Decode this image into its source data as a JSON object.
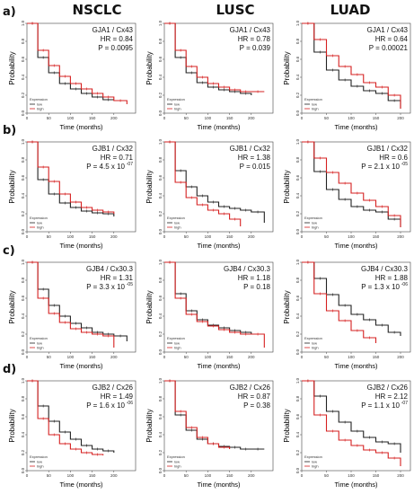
{
  "columns": [
    "NSCLC",
    "LUSC",
    "LUAD"
  ],
  "rows": [
    "a)",
    "b)",
    "c)",
    "d)"
  ],
  "axis": {
    "ylabel": "Probability",
    "xlabel": "Time (months)",
    "yticks": [
      "0.0",
      "0.2",
      "0.4",
      "0.6",
      "0.8",
      "1.0"
    ]
  },
  "legend": {
    "title": "Expression",
    "low": "low",
    "high": "high"
  },
  "colors": {
    "low": "#222222",
    "high": "#d62020",
    "censor_alt": "#8a8a1a"
  },
  "chart_data": [
    {
      "type": "line",
      "row": 0,
      "col": 0,
      "gene": "GJA1 / Cx43",
      "hr": "HR = 0.84",
      "p": "P = 0.0095",
      "xmax": 250,
      "xticks": [
        0,
        50,
        100,
        150,
        200
      ],
      "series": [
        {
          "name": "low",
          "x": [
            0,
            25,
            50,
            75,
            100,
            125,
            150,
            175,
            200
          ],
          "y": [
            1,
            0.62,
            0.45,
            0.33,
            0.27,
            0.22,
            0.18,
            0.15,
            0.15
          ]
        },
        {
          "name": "high",
          "x": [
            0,
            25,
            50,
            75,
            100,
            125,
            150,
            175,
            200,
            230
          ],
          "y": [
            1,
            0.7,
            0.53,
            0.41,
            0.33,
            0.27,
            0.22,
            0.18,
            0.14,
            0.1
          ]
        }
      ]
    },
    {
      "type": "line",
      "row": 0,
      "col": 1,
      "gene": "GJA1 / Cx43",
      "hr": "HR = 0.78",
      "p": "P = 0.039",
      "xmax": 250,
      "xticks": [
        0,
        50,
        100,
        150,
        200
      ],
      "series": [
        {
          "name": "low",
          "x": [
            0,
            25,
            50,
            75,
            100,
            125,
            150,
            175,
            200
          ],
          "y": [
            1,
            0.62,
            0.45,
            0.34,
            0.29,
            0.26,
            0.24,
            0.22,
            0.2
          ]
        },
        {
          "name": "high",
          "x": [
            0,
            25,
            50,
            75,
            100,
            125,
            150,
            175,
            200,
            230
          ],
          "y": [
            1,
            0.7,
            0.52,
            0.4,
            0.33,
            0.29,
            0.26,
            0.24,
            0.24,
            0.24
          ]
        }
      ]
    },
    {
      "type": "line",
      "row": 0,
      "col": 2,
      "gene": "GJA1 / Cx43",
      "hr": "HR = 0.64",
      "p": "P = 0.00021",
      "xmax": 220,
      "xticks": [
        0,
        50,
        100,
        150,
        200
      ],
      "series": [
        {
          "name": "low",
          "x": [
            0,
            25,
            50,
            75,
            100,
            125,
            150,
            175,
            200
          ],
          "y": [
            1,
            0.68,
            0.48,
            0.37,
            0.3,
            0.25,
            0.22,
            0.14,
            0.05
          ]
        },
        {
          "name": "high",
          "x": [
            0,
            25,
            50,
            75,
            100,
            125,
            150,
            175,
            200
          ],
          "y": [
            1,
            0.82,
            0.64,
            0.52,
            0.43,
            0.34,
            0.29,
            0.2,
            0.05
          ]
        }
      ]
    },
    {
      "type": "line",
      "row": 1,
      "col": 0,
      "gene": "GJB1 / Cx32",
      "hr": "HR = 0.71",
      "p": "P = 4.5 x 10",
      "p_exp": "-07",
      "xmax": 250,
      "xticks": [
        0,
        50,
        100,
        150,
        200
      ],
      "series": [
        {
          "name": "low",
          "x": [
            0,
            25,
            50,
            75,
            100,
            125,
            150,
            175,
            200
          ],
          "y": [
            1,
            0.58,
            0.42,
            0.32,
            0.27,
            0.23,
            0.21,
            0.2,
            0.17
          ]
        },
        {
          "name": "high",
          "x": [
            0,
            25,
            50,
            75,
            100,
            125,
            150,
            175,
            200
          ],
          "y": [
            1,
            0.72,
            0.56,
            0.42,
            0.33,
            0.27,
            0.24,
            0.22,
            0.2
          ]
        }
      ]
    },
    {
      "type": "line",
      "row": 1,
      "col": 1,
      "gene": "GJB1 / Cx32",
      "hr": "HR = 1.38",
      "p": "P = 0.015",
      "xmax": 250,
      "xticks": [
        0,
        50,
        100,
        150,
        200
      ],
      "series": [
        {
          "name": "low",
          "x": [
            0,
            25,
            50,
            75,
            100,
            125,
            150,
            175,
            200,
            230
          ],
          "y": [
            1,
            0.68,
            0.5,
            0.4,
            0.33,
            0.28,
            0.26,
            0.24,
            0.22,
            0.1
          ]
        },
        {
          "name": "high",
          "x": [
            0,
            25,
            50,
            75,
            100,
            125,
            150,
            175
          ],
          "y": [
            1,
            0.55,
            0.38,
            0.3,
            0.24,
            0.2,
            0.14,
            0.06
          ]
        }
      ]
    },
    {
      "type": "line",
      "row": 1,
      "col": 2,
      "gene": "GJB1 / Cx32",
      "hr": "HR = 0.6",
      "p": "P = 2.1 x 10",
      "p_exp": "-05",
      "xmax": 220,
      "xticks": [
        0,
        50,
        100,
        150,
        200
      ],
      "series": [
        {
          "name": "low",
          "x": [
            0,
            25,
            50,
            75,
            100,
            125,
            150,
            175,
            200
          ],
          "y": [
            1,
            0.67,
            0.47,
            0.36,
            0.28,
            0.24,
            0.22,
            0.14,
            0.05
          ]
        },
        {
          "name": "high",
          "x": [
            0,
            25,
            50,
            75,
            100,
            125,
            150,
            175,
            200
          ],
          "y": [
            1,
            0.82,
            0.66,
            0.54,
            0.43,
            0.35,
            0.28,
            0.18,
            0.05
          ]
        }
      ]
    },
    {
      "type": "line",
      "row": 2,
      "col": 0,
      "gene": "GJB4 / Cx30.3",
      "hr": "HR = 1.31",
      "p": "P = 3.3 x 10",
      "p_exp": "-05",
      "xmax": 250,
      "xticks": [
        0,
        50,
        100,
        150,
        200
      ],
      "series": [
        {
          "name": "low",
          "x": [
            0,
            25,
            50,
            75,
            100,
            125,
            150,
            175,
            200,
            230
          ],
          "y": [
            1,
            0.7,
            0.52,
            0.4,
            0.32,
            0.27,
            0.22,
            0.2,
            0.18,
            0.12
          ]
        },
        {
          "name": "high",
          "x": [
            0,
            25,
            50,
            75,
            100,
            125,
            150,
            175,
            200
          ],
          "y": [
            1,
            0.6,
            0.43,
            0.33,
            0.26,
            0.22,
            0.2,
            0.18,
            0.05
          ]
        }
      ]
    },
    {
      "type": "line",
      "row": 2,
      "col": 1,
      "gene": "GJB4 / Cx30.3",
      "hr": "HR = 1.18",
      "p": "P = 0.18",
      "xmax": 250,
      "xticks": [
        0,
        50,
        100,
        150,
        200
      ],
      "series": [
        {
          "name": "low",
          "x": [
            0,
            25,
            50,
            75,
            100,
            125,
            150,
            175,
            200
          ],
          "y": [
            1,
            0.65,
            0.46,
            0.36,
            0.3,
            0.27,
            0.24,
            0.22,
            0.2
          ]
        },
        {
          "name": "high",
          "x": [
            0,
            25,
            50,
            75,
            100,
            125,
            150,
            175,
            200,
            230
          ],
          "y": [
            1,
            0.6,
            0.42,
            0.34,
            0.29,
            0.25,
            0.22,
            0.2,
            0.2,
            0.05
          ]
        }
      ]
    },
    {
      "type": "line",
      "row": 2,
      "col": 2,
      "gene": "GJB4 / Cx30.3",
      "hr": "HR = 1.88",
      "p": "P = 1.3 x 10",
      "p_exp": "-06",
      "xmax": 220,
      "xticks": [
        0,
        50,
        100,
        150,
        200
      ],
      "series": [
        {
          "name": "low",
          "x": [
            0,
            25,
            50,
            75,
            100,
            125,
            150,
            175,
            200
          ],
          "y": [
            1,
            0.82,
            0.64,
            0.52,
            0.42,
            0.36,
            0.3,
            0.22,
            0.18
          ]
        },
        {
          "name": "high",
          "x": [
            0,
            25,
            50,
            75,
            100,
            125,
            150
          ],
          "y": [
            1,
            0.65,
            0.46,
            0.35,
            0.24,
            0.16,
            0.1
          ]
        }
      ]
    },
    {
      "type": "line",
      "row": 3,
      "col": 0,
      "gene": "GJB2 / Cx26",
      "hr": "HR = 1.49",
      "p": "P = 1.6 x 10",
      "p_exp": "-06",
      "xmax": 250,
      "xticks": [
        0,
        50,
        100,
        150,
        200
      ],
      "series": [
        {
          "name": "low",
          "x": [
            0,
            25,
            50,
            75,
            100,
            125,
            150,
            175,
            200
          ],
          "y": [
            1,
            0.72,
            0.55,
            0.43,
            0.35,
            0.28,
            0.24,
            0.22,
            0.2
          ]
        },
        {
          "name": "high",
          "x": [
            0,
            25,
            50,
            75,
            100,
            125,
            150,
            175
          ],
          "y": [
            1,
            0.58,
            0.4,
            0.3,
            0.24,
            0.2,
            0.18,
            0.17
          ]
        }
      ]
    },
    {
      "type": "line",
      "row": 3,
      "col": 1,
      "gene": "GJB2 / Cx26",
      "hr": "HR = 0.87",
      "p": "P = 0.38",
      "xmax": 250,
      "xticks": [
        0,
        50,
        100,
        150,
        200
      ],
      "series": [
        {
          "name": "low",
          "x": [
            0,
            25,
            50,
            75,
            100,
            125,
            150,
            175,
            200,
            230
          ],
          "y": [
            1,
            0.62,
            0.45,
            0.35,
            0.3,
            0.27,
            0.26,
            0.24,
            0.24,
            0.24
          ]
        },
        {
          "name": "high",
          "x": [
            0,
            25,
            50,
            75,
            100,
            125,
            150
          ],
          "y": [
            1,
            0.66,
            0.48,
            0.37,
            0.3,
            0.26,
            0.24
          ]
        }
      ]
    },
    {
      "type": "line",
      "row": 3,
      "col": 2,
      "gene": "GJB2 / Cx26",
      "hr": "HR = 2.12",
      "p": "P = 1.1 x 10",
      "p_exp": "-07",
      "xmax": 220,
      "xticks": [
        0,
        50,
        100,
        150,
        200
      ],
      "series": [
        {
          "name": "low",
          "x": [
            0,
            25,
            50,
            75,
            100,
            125,
            150,
            175,
            200
          ],
          "y": [
            1,
            0.83,
            0.66,
            0.54,
            0.44,
            0.37,
            0.32,
            0.3,
            0.2
          ]
        },
        {
          "name": "high",
          "x": [
            0,
            25,
            50,
            75,
            100,
            125,
            150,
            175,
            200
          ],
          "y": [
            1,
            0.62,
            0.44,
            0.34,
            0.28,
            0.23,
            0.2,
            0.14,
            0.05
          ]
        }
      ]
    }
  ]
}
